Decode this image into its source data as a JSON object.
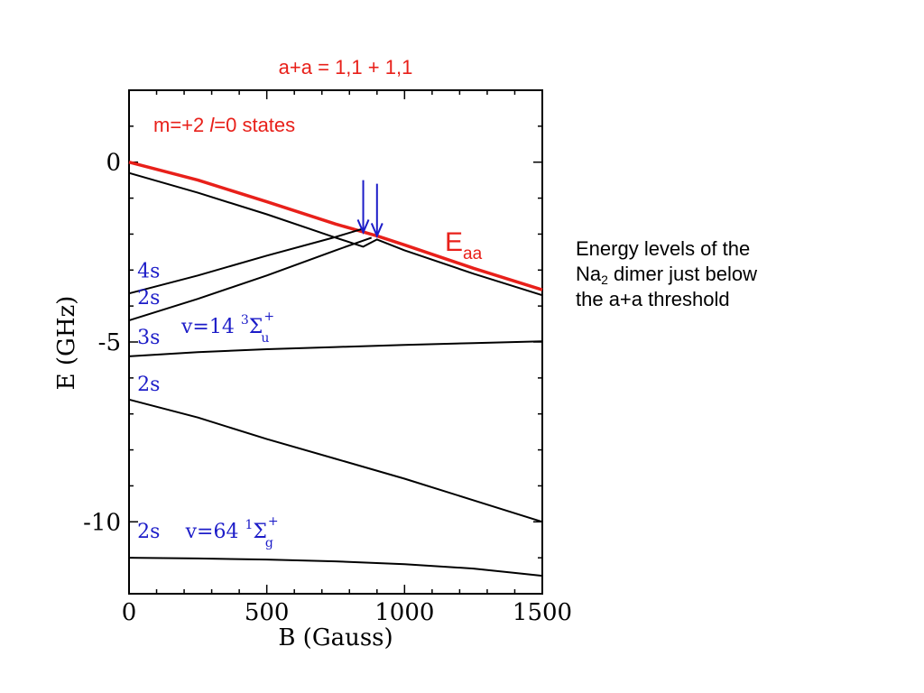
{
  "caption": {
    "line1": "Energy levels of the",
    "line2_prefix": "Na",
    "line2_sub": "2",
    "line2_suffix": " dimer just below",
    "line3": "the a+a threshold"
  },
  "chart_data": {
    "type": "line",
    "title": "a+a = 1,1 + 1,1",
    "subtitle_prefix": "m=+2 ",
    "subtitle_italic": "l",
    "subtitle_suffix": "=0 states",
    "xlabel": "B (Gauss)",
    "ylabel": "E (GHz)",
    "xlim": [
      0,
      1500
    ],
    "ylim": [
      -12,
      2
    ],
    "xticks": [
      0,
      500,
      1000,
      1500
    ],
    "xtick_labels": [
      "0",
      "500",
      "1000",
      "1500"
    ],
    "yticks": [
      0,
      -5,
      -10
    ],
    "ytick_labels": [
      "0",
      "-5",
      "-10"
    ],
    "grid": false,
    "colors": {
      "threshold": "#e8201a",
      "levels": "#000000",
      "annotations": "#1c1cc8"
    },
    "threshold_label": {
      "main": "E",
      "sub": "aa"
    },
    "series": [
      {
        "name": "E_aa",
        "threshold": true,
        "x": [
          0,
          250,
          500,
          750,
          900,
          1000,
          1250,
          1500
        ],
        "y": [
          0,
          -0.5,
          -1.1,
          -1.72,
          -2.05,
          -2.3,
          -2.95,
          -3.55
        ]
      },
      {
        "x": [
          0,
          250,
          500,
          750,
          850,
          900,
          1000,
          1250,
          1500
        ],
        "y": [
          -0.3,
          -0.85,
          -1.45,
          -2.1,
          -2.35,
          -2.15,
          -2.45,
          -3.1,
          -3.7
        ]
      },
      {
        "x": [
          0,
          250,
          500,
          750,
          850
        ],
        "y": [
          -3.65,
          -3.15,
          -2.6,
          -2.08,
          -1.85
        ]
      },
      {
        "x": [
          0,
          250,
          500,
          750,
          880
        ],
        "y": [
          -4.4,
          -3.8,
          -3.15,
          -2.45,
          -2.1
        ]
      },
      {
        "x": [
          0,
          250,
          500,
          750,
          1000,
          1250,
          1500
        ],
        "y": [
          -5.4,
          -5.28,
          -5.2,
          -5.14,
          -5.08,
          -5.03,
          -4.98
        ]
      },
      {
        "x": [
          0,
          250,
          500,
          750,
          1000,
          1250,
          1500
        ],
        "y": [
          -6.6,
          -7.1,
          -7.7,
          -8.25,
          -8.8,
          -9.4,
          -10.0
        ]
      },
      {
        "x": [
          0,
          250,
          500,
          750,
          1000,
          1250,
          1500
        ],
        "y": [
          -11.0,
          -11.02,
          -11.05,
          -11.1,
          -11.18,
          -11.3,
          -11.5
        ]
      }
    ],
    "state_labels": [
      {
        "text": "4s",
        "x": 30,
        "y": -3.2
      },
      {
        "text": "2s",
        "x": 30,
        "y": -3.95
      },
      {
        "text": "3s",
        "x": 30,
        "y": -5.05
      },
      {
        "text": "2s",
        "x": 30,
        "y": -6.35
      },
      {
        "text": "2s",
        "x": 30,
        "y": -10.45
      }
    ],
    "vib_labels": [
      {
        "prefix": "v=14",
        "sup": "3",
        "symbol": "Σ",
        "sub": "u",
        "sup2": "+",
        "x": 190,
        "y": -4.75
      },
      {
        "prefix": "v=64",
        "sup": "1",
        "symbol": "Σ",
        "sub": "g",
        "sup2": "+",
        "x": 205,
        "y": -10.45
      }
    ],
    "arrows": [
      {
        "x": 850,
        "y_from": -0.5,
        "y_to": -1.95
      },
      {
        "x": 900,
        "y_from": -0.6,
        "y_to": -2.05
      }
    ]
  }
}
